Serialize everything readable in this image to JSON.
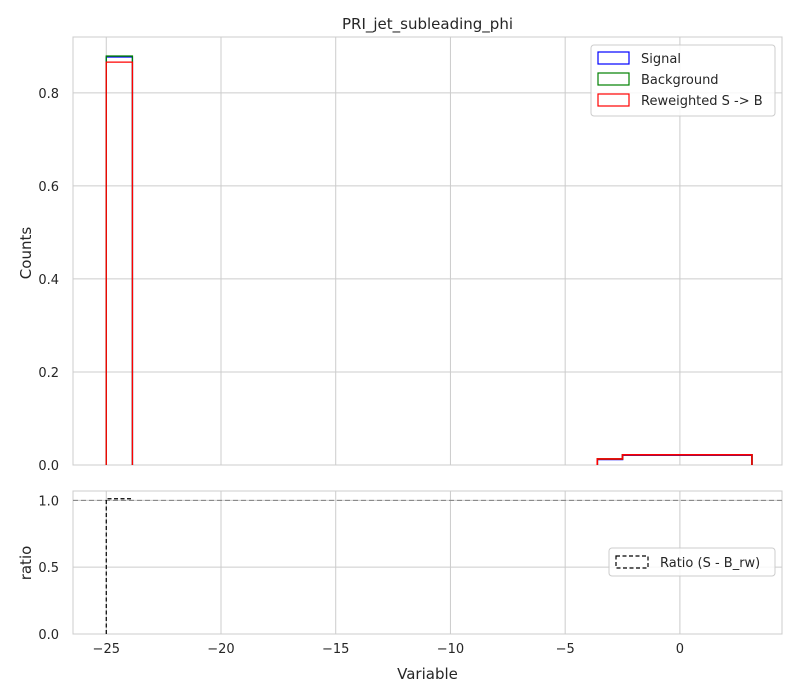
{
  "chart_data": [
    {
      "type": "step-histogram",
      "title": "PRI_jet_subleading_phi",
      "xlabel": "",
      "ylabel": "Counts",
      "xlim": [
        -26.45,
        4.45
      ],
      "ylim": [
        0,
        0.92
      ],
      "xticks": [
        -25,
        -20,
        -15,
        -10,
        -5,
        0
      ],
      "xtick_labels": [
        "",
        "",
        "",
        "",
        "",
        ""
      ],
      "yticks": [
        0.0,
        0.2,
        0.4,
        0.6,
        0.8
      ],
      "ytick_labels": [
        "0.0",
        "0.2",
        "0.4",
        "0.6",
        "0.8"
      ],
      "grid": true,
      "legend_position": "top-right",
      "series": [
        {
          "name": "Signal",
          "color": "#0000ff",
          "bins": [
            [
              -25.0,
              -23.86,
              0.877
            ]
          ],
          "tail": [
            [
              -3.6,
              -2.5,
              0.012
            ],
            [
              -2.5,
              3.14,
              0.021
            ]
          ]
        },
        {
          "name": "Background",
          "color": "#008000",
          "bins": [
            [
              -25.0,
              -23.86,
              0.879
            ]
          ],
          "tail": [
            [
              -3.6,
              -2.5,
              0.013
            ],
            [
              -2.5,
              3.14,
              0.022
            ]
          ]
        },
        {
          "name": "Reweighted S -> B",
          "color": "#ff0000",
          "bins": [
            [
              -25.0,
              -23.86,
              0.866
            ]
          ],
          "tail": [
            [
              -3.6,
              -2.5,
              0.013
            ],
            [
              -2.5,
              3.14,
              0.022
            ]
          ]
        }
      ]
    },
    {
      "type": "step-line",
      "xlabel": "Variable",
      "ylabel": "ratio",
      "xlim": [
        -26.45,
        4.45
      ],
      "ylim": [
        0,
        1.07
      ],
      "xticks": [
        -25,
        -20,
        -15,
        -10,
        -5,
        0
      ],
      "xtick_labels": [
        "−25",
        "−20",
        "−15",
        "−10",
        "−5",
        "0"
      ],
      "yticks": [
        0.0,
        0.5,
        1.0
      ],
      "ytick_labels": [
        "0.0",
        "0.5",
        "1.0"
      ],
      "grid": true,
      "reference_line": 1.0,
      "legend_position": "center-right",
      "series": [
        {
          "name": "Ratio (S - B_rw)",
          "color": "#000000",
          "style": "dashed",
          "points": [
            [
              -25.0,
              0.0
            ],
            [
              -25.0,
              1.012
            ],
            [
              -23.86,
              1.012
            ]
          ]
        }
      ]
    }
  ]
}
